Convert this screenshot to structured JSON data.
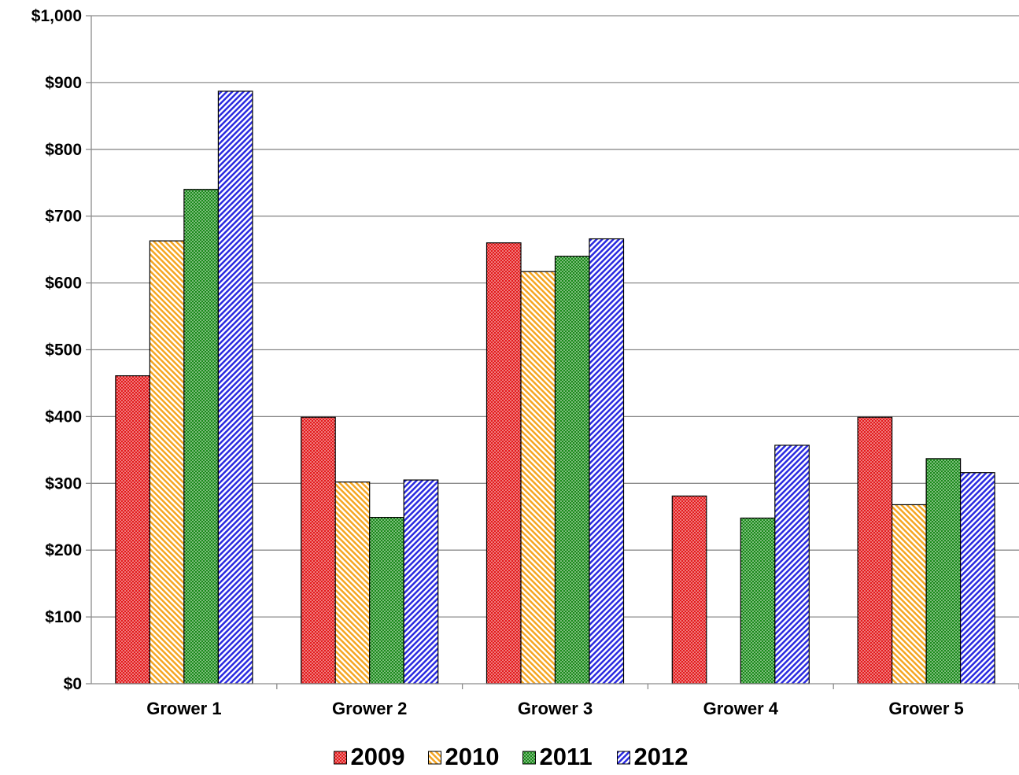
{
  "chart_data": {
    "type": "bar",
    "title": "",
    "xlabel": "",
    "ylabel": "",
    "categories": [
      "Grower 1",
      "Grower 2",
      "Grower 3",
      "Grower 4",
      "Grower 5"
    ],
    "series": [
      {
        "name": "2009",
        "values": [
          461,
          399,
          660,
          281,
          399
        ],
        "color": "#e31a1c",
        "pattern": "dots"
      },
      {
        "name": "2010",
        "values": [
          663,
          302,
          617,
          null,
          268
        ],
        "color": "#f5a623",
        "pattern": "diagonal-down"
      },
      {
        "name": "2011",
        "values": [
          740,
          249,
          640,
          248,
          337
        ],
        "color": "#1a8a1a",
        "pattern": "dots"
      },
      {
        "name": "2012",
        "values": [
          887,
          305,
          666,
          357,
          316
        ],
        "color": "#2a2ae0",
        "pattern": "diagonal-up"
      }
    ],
    "ylim": [
      0,
      1000
    ],
    "yticks": [
      0,
      100,
      200,
      300,
      400,
      500,
      600,
      700,
      800,
      900,
      1000
    ],
    "ytick_labels": [
      "$0",
      "$100",
      "$200",
      "$300",
      "$400",
      "$500",
      "$600",
      "$700",
      "$800",
      "$900",
      "$1,000"
    ],
    "grid": true,
    "legend_position": "bottom"
  }
}
